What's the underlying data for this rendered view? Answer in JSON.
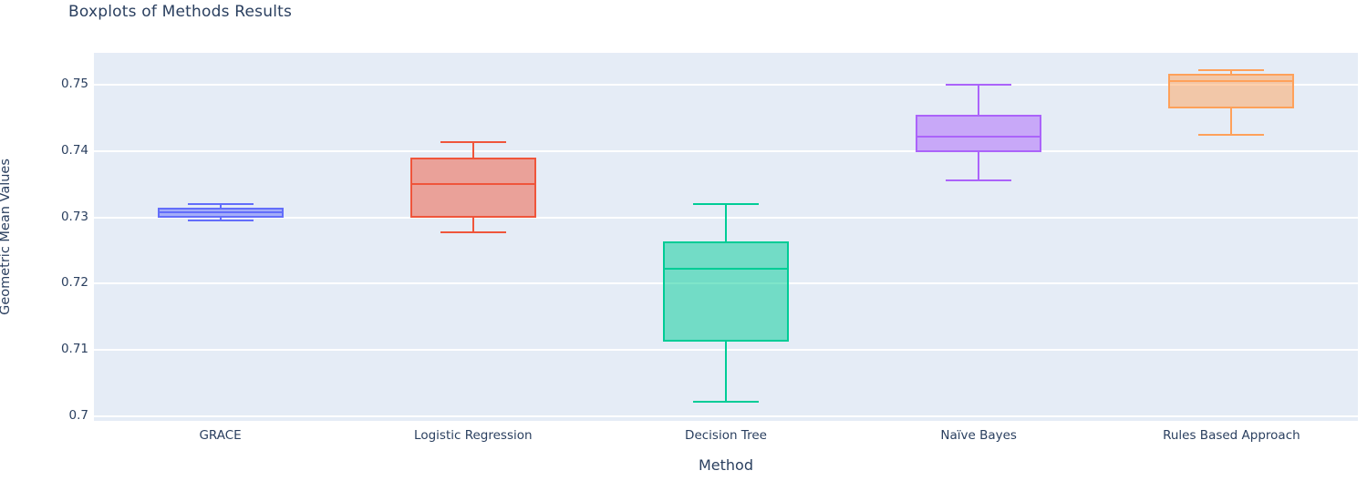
{
  "chart_data": {
    "type": "box",
    "title": "Boxplots of Methods Results",
    "xlabel": "Method",
    "ylabel": "Geometric Mean Values",
    "categories": [
      "GRACE",
      "Logistic Regression",
      "Decision Tree",
      "Naïve Bayes",
      "Rules Based Approach"
    ],
    "series": [
      {
        "name": "GRACE",
        "color": "#636EFA",
        "min": 0.7295,
        "q1": 0.73,
        "median": 0.7307,
        "q3": 0.7315,
        "max": 0.732
      },
      {
        "name": "Logistic Regression",
        "color": "#EF553B",
        "min": 0.7277,
        "q1": 0.73,
        "median": 0.735,
        "q3": 0.739,
        "max": 0.7413
      },
      {
        "name": "Decision Tree",
        "color": "#00CC96",
        "min": 0.7022,
        "q1": 0.7113,
        "median": 0.7223,
        "q3": 0.7263,
        "max": 0.732
      },
      {
        "name": "Naïve Bayes",
        "color": "#AB63FA",
        "min": 0.7355,
        "q1": 0.7398,
        "median": 0.7422,
        "q3": 0.7455,
        "max": 0.75
      },
      {
        "name": "Rules Based Approach",
        "color": "#FFA15A",
        "min": 0.7424,
        "q1": 0.7464,
        "median": 0.7505,
        "q3": 0.7516,
        "max": 0.7522
      }
    ],
    "ylim": [
      0.6993,
      0.7548
    ],
    "yticks": [
      {
        "value": 0.7,
        "label": "0.7"
      },
      {
        "value": 0.71,
        "label": "0.71"
      },
      {
        "value": 0.72,
        "label": "0.72"
      },
      {
        "value": 0.73,
        "label": "0.73"
      },
      {
        "value": 0.74,
        "label": "0.74"
      },
      {
        "value": 0.75,
        "label": "0.75"
      }
    ],
    "grid": true,
    "legend": false,
    "plot_background": "#E5ECF6",
    "grid_color": "#FFFFFF",
    "text_color": "#2A3F5F"
  }
}
